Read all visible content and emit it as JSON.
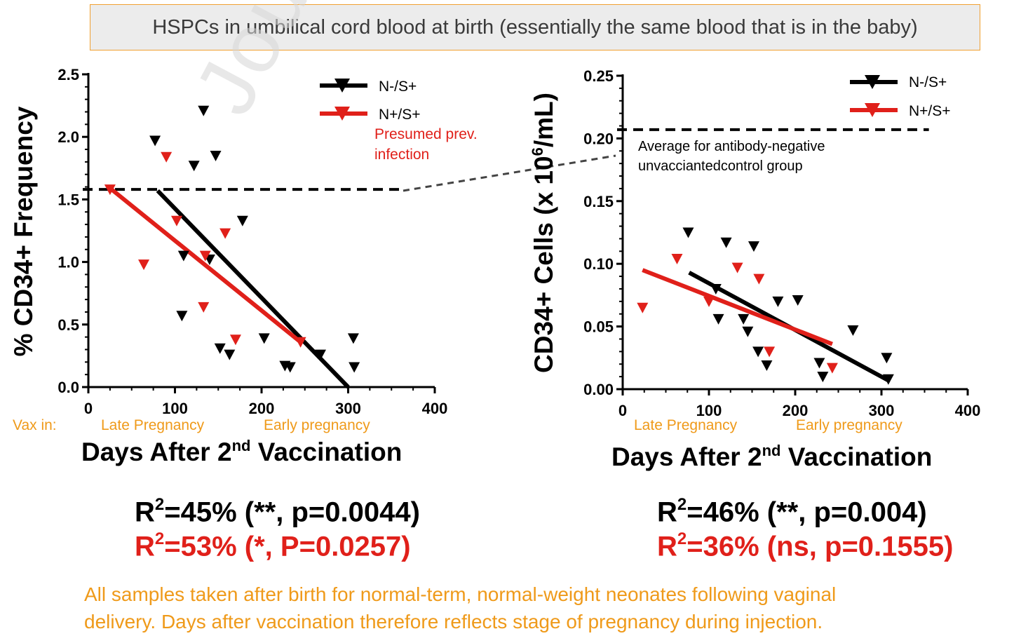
{
  "banner": "HSPCs in umbilical cord blood at birth (essentially the same blood that is in the baby)",
  "watermark": "Journal",
  "colors": {
    "black_series": "#000000",
    "red_series": "#e0201a",
    "orange_text": "#ef9a1a",
    "banner_border": "#f0a030",
    "banner_fill": "#ececec"
  },
  "vax_in_label": "Vax in:",
  "late_pregnancy_label": "Late Pregnancy",
  "early_pregnancy_label": "Early pregnancy",
  "annotations": {
    "presumed_line1": "Presumed prev.",
    "presumed_line2": "infection",
    "avg_line1": "Average for antibody-negative",
    "avg_line2": "unvacciantedcontrol group"
  },
  "stats": {
    "left_black": {
      "r2": "45",
      "rest": "% (**, p=0.0044)"
    },
    "left_red": {
      "r2": "53",
      "rest": "% (*,  P=0.0257)"
    },
    "right_black": {
      "r2": "46",
      "rest": "% (**,  p=0.004)"
    },
    "right_red": {
      "r2": "36",
      "rest": "% (ns, p=0.1555)"
    }
  },
  "footnote": {
    "line1": "All samples taken after birth for normal-term, normal-weight neonates following vaginal",
    "line2": "delivery. Days after vaccination therefore reflects stage of pregnancy during injection."
  },
  "chart_data": [
    {
      "type": "scatter",
      "title": "",
      "xlabel": "Days After 2nd Vaccination",
      "ylabel": "% CD34+ Frequency",
      "xlim": [
        0,
        400
      ],
      "ylim": [
        0,
        2.5
      ],
      "xticks": [
        0,
        100,
        200,
        300,
        400
      ],
      "yticks": [
        0.0,
        0.5,
        1.0,
        1.5,
        2.0,
        2.5
      ],
      "ytick_labels": [
        "0.0",
        "0.5",
        "1.0",
        "1.5",
        "2.0",
        "2.5"
      ],
      "legend": "top-right",
      "reference_line": {
        "y": 1.58,
        "x_end": 365
      },
      "series": [
        {
          "name": "N-/S+",
          "color": "#000000",
          "marker": "triangle-down",
          "points": [
            [
              77,
              1.97
            ],
            [
              122,
              1.77
            ],
            [
              133,
              2.21
            ],
            [
              147,
              1.85
            ],
            [
              110,
              1.05
            ],
            [
              140,
              1.02
            ],
            [
              178,
              1.33
            ],
            [
              108,
              0.57
            ],
            [
              152,
              0.31
            ],
            [
              163,
              0.26
            ],
            [
              203,
              0.39
            ],
            [
              227,
              0.17
            ],
            [
              233,
              0.16
            ],
            [
              268,
              0.26
            ],
            [
              306,
              0.39
            ],
            [
              307,
              0.16
            ]
          ],
          "fit": [
            [
              80,
              1.57
            ],
            [
              300,
              0.0
            ]
          ]
        },
        {
          "name": "N+/S+",
          "color": "#e0201a",
          "marker": "triangle-down",
          "points": [
            [
              25,
              1.58
            ],
            [
              64,
              0.98
            ],
            [
              90,
              1.84
            ],
            [
              102,
              1.33
            ],
            [
              135,
              1.05
            ],
            [
              133,
              0.64
            ],
            [
              158,
              1.23
            ],
            [
              170,
              0.38
            ],
            [
              245,
              0.36
            ]
          ],
          "fit": [
            [
              25,
              1.59
            ],
            [
              245,
              0.36
            ]
          ]
        }
      ]
    },
    {
      "type": "scatter",
      "title": "",
      "xlabel": "Days After 2nd Vaccination",
      "ylabel": "CD34+ Cells (x 10^6/mL)",
      "xlim": [
        0,
        400
      ],
      "ylim": [
        0,
        0.25
      ],
      "xticks": [
        0,
        100,
        200,
        300,
        400
      ],
      "yticks": [
        0.0,
        0.05,
        0.1,
        0.15,
        0.2,
        0.25
      ],
      "ytick_labels": [
        "0.00",
        "0.05",
        "0.10",
        "0.15",
        "0.20",
        "0.25"
      ],
      "legend": "top-right",
      "reference_line": {
        "y": 0.207,
        "x_end": 355
      },
      "series": [
        {
          "name": "N-/S+",
          "color": "#000000",
          "marker": "triangle-down",
          "points": [
            [
              76,
              0.125
            ],
            [
              108,
              0.08
            ],
            [
              111,
              0.056
            ],
            [
              120,
              0.117
            ],
            [
              140,
              0.056
            ],
            [
              145,
              0.046
            ],
            [
              152,
              0.114
            ],
            [
              157,
              0.03
            ],
            [
              167,
              0.019
            ],
            [
              180,
              0.07
            ],
            [
              203,
              0.071
            ],
            [
              228,
              0.021
            ],
            [
              232,
              0.01
            ],
            [
              267,
              0.047
            ],
            [
              306,
              0.025
            ],
            [
              308,
              0.008
            ]
          ],
          "fit": [
            [
              77,
              0.093
            ],
            [
              308,
              0.007
            ]
          ]
        },
        {
          "name": "N+/S+",
          "color": "#e0201a",
          "marker": "triangle-down",
          "points": [
            [
              23,
              0.065
            ],
            [
              63,
              0.104
            ],
            [
              100,
              0.07
            ],
            [
              133,
              0.097
            ],
            [
              158,
              0.088
            ],
            [
              170,
              0.03
            ],
            [
              243,
              0.017
            ]
          ],
          "fit": [
            [
              23,
              0.095
            ],
            [
              243,
              0.036
            ]
          ]
        }
      ]
    }
  ]
}
